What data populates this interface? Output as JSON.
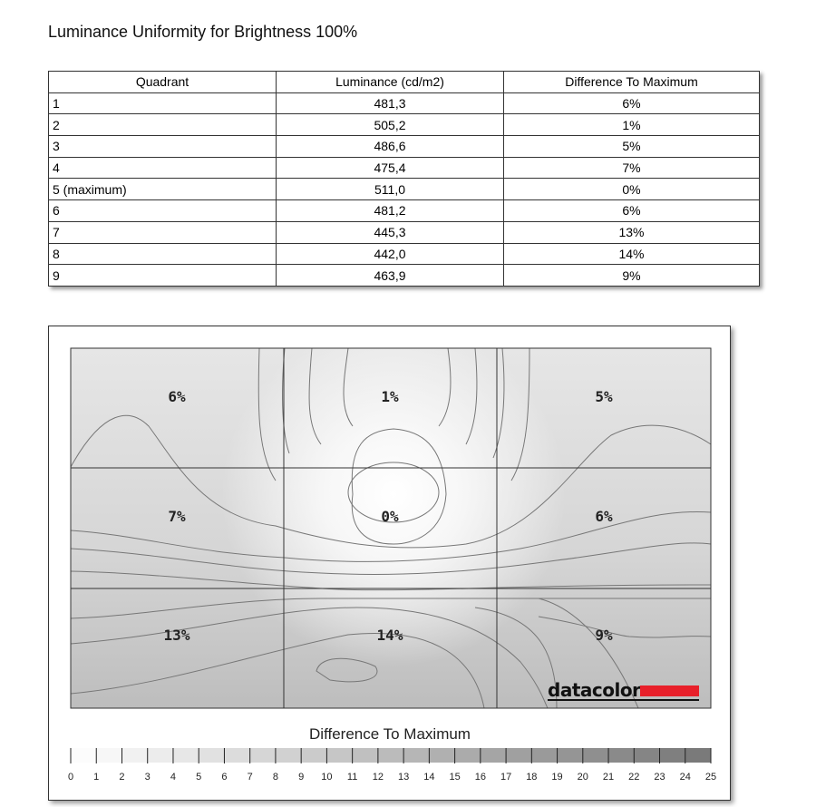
{
  "title": "Luminance Uniformity for Brightness 100%",
  "table": {
    "headers": [
      "Quadrant",
      "Luminance (cd/m2)",
      "Difference To Maximum"
    ],
    "rows": [
      [
        "1",
        "481,3",
        "6%"
      ],
      [
        "2",
        "505,2",
        "1%"
      ],
      [
        "3",
        "486,6",
        "5%"
      ],
      [
        "4",
        "475,4",
        "7%"
      ],
      [
        "5 (maximum)",
        "511,0",
        "0%"
      ],
      [
        "6",
        "481,2",
        "6%"
      ],
      [
        "7",
        "445,3",
        "13%"
      ],
      [
        "8",
        "442,0",
        "14%"
      ],
      [
        "9",
        "463,9",
        "9%"
      ]
    ]
  },
  "chart_data": {
    "type": "heatmap",
    "grid": [
      [
        "6%",
        "1%",
        "5%"
      ],
      [
        "7%",
        "0%",
        "6%"
      ],
      [
        "13%",
        "14%",
        "9%"
      ]
    ],
    "values": [
      [
        6,
        1,
        5
      ],
      [
        7,
        0,
        6
      ],
      [
        13,
        14,
        9
      ]
    ],
    "legend": {
      "title": "Difference To Maximum",
      "ticks": [
        0,
        1,
        2,
        3,
        4,
        5,
        6,
        7,
        8,
        9,
        10,
        11,
        12,
        13,
        14,
        15,
        16,
        17,
        18,
        19,
        20,
        21,
        22,
        23,
        24,
        25
      ],
      "range": [
        0,
        25
      ],
      "color_min": "#ffffff",
      "color_max": "#777777"
    },
    "logo": "datacolor",
    "logo_color": "#e8202a"
  }
}
